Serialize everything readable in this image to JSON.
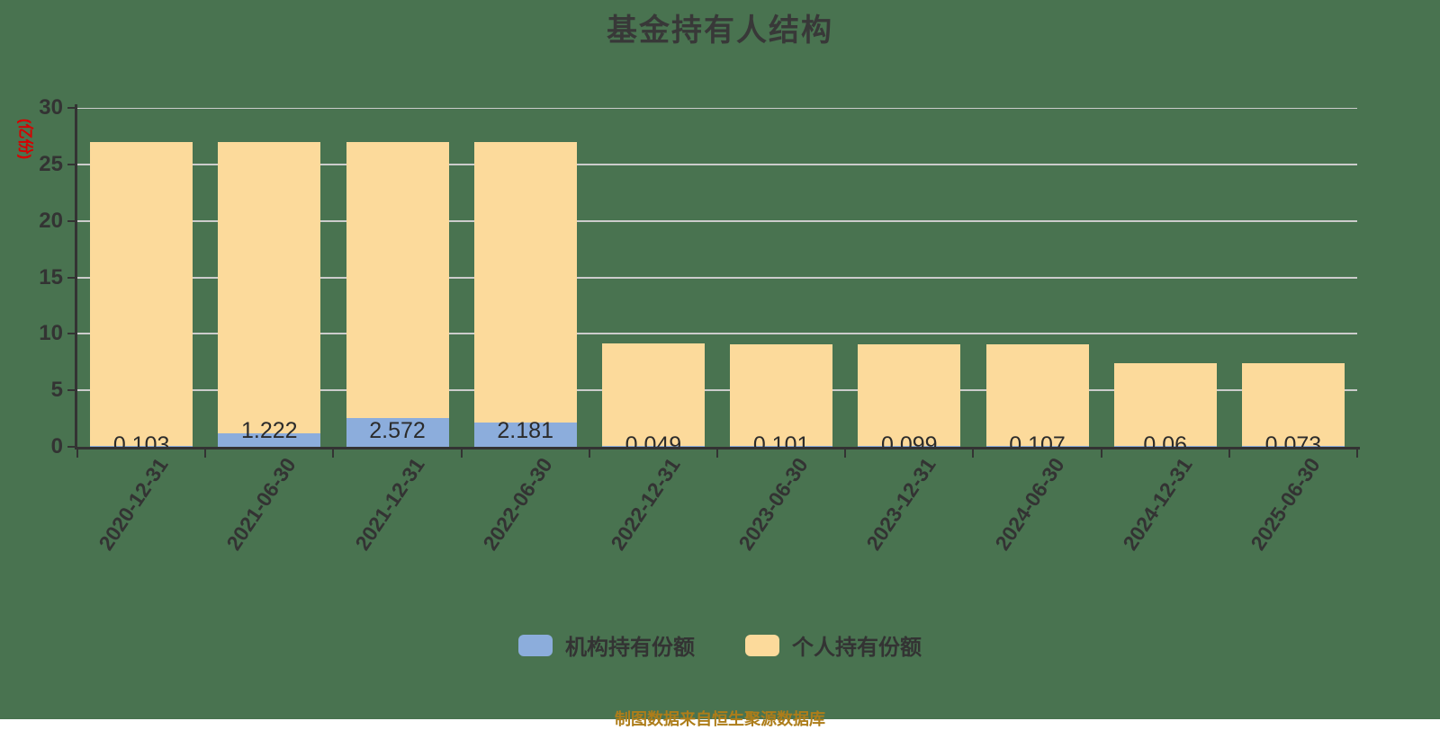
{
  "title": "基金持有人结构",
  "y_axis": {
    "unit": "(亿份)",
    "ticks": [
      0,
      5,
      10,
      15,
      20,
      25,
      30
    ],
    "min": 0,
    "max": 30
  },
  "legend": [
    {
      "label": "机构持有份额",
      "color": "#8caddc"
    },
    {
      "label": "个人持有份额",
      "color": "#fcda9b"
    }
  ],
  "footer": "制图数据来自恒生聚源数据库",
  "colors": {
    "background": "#497350",
    "institutional": "#8caddc",
    "individual": "#fcda9b",
    "axis": "#333333",
    "grid": "#cccccc",
    "title_text": "#383838",
    "unit_text": "#d60000",
    "footer_text": "#ad7d1a",
    "value_label_text": "#2b2b2b"
  },
  "chart_data": {
    "type": "bar",
    "stacked": true,
    "title": "基金持有人结构",
    "ylabel": "(亿份)",
    "ylim": [
      0,
      30
    ],
    "grid": true,
    "legend_position": "bottom",
    "categories": [
      "2020-12-31",
      "2021-06-30",
      "2021-12-31",
      "2022-06-30",
      "2022-12-31",
      "2023-06-30",
      "2023-12-31",
      "2024-06-30",
      "2024-12-31",
      "2025-06-30"
    ],
    "series": [
      {
        "name": "机构持有份额",
        "color": "#8caddc",
        "values": [
          0.103,
          1.222,
          2.572,
          2.181,
          0.049,
          0.101,
          0.099,
          0.107,
          0.06,
          0.073
        ],
        "data_labels": [
          "0.103",
          "1.222",
          "2.572",
          "2.181",
          "0.049",
          "0.101",
          "0.099",
          "0.107",
          "0.06",
          "0.073"
        ]
      },
      {
        "name": "个人持有份额",
        "color": "#fcda9b",
        "values": [
          26.9,
          25.78,
          24.43,
          24.82,
          9.05,
          9.0,
          9.0,
          9.0,
          7.34,
          7.33
        ],
        "values_note": "estimated from gridlines; stacked totals ≈ 27, 27, 27, 27, 9.1, 9.1, 9.1, 9.1, 7.4, 7.4"
      }
    ]
  }
}
